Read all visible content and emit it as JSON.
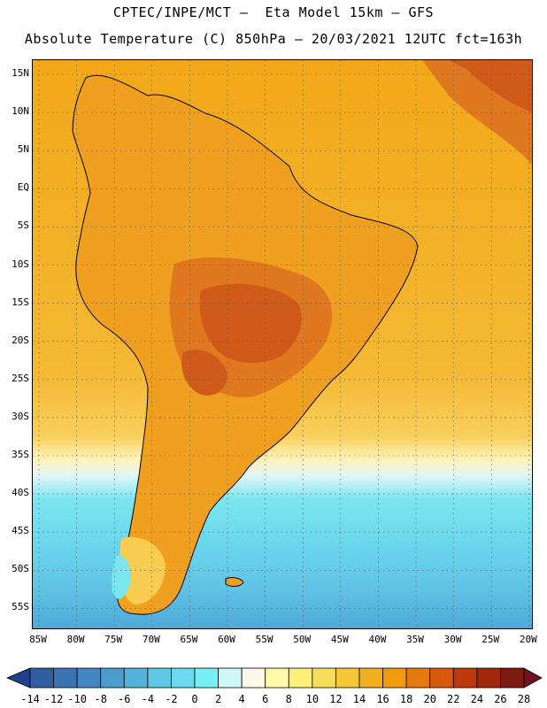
{
  "title_line1": "CPTEC/INPE/MCT —  Eta Model 15km — GFS",
  "title_line2": "Absolute Temperature (C) 850hPa — 20/03/2021 12UTC fct=163h",
  "lat_labels": [
    "15N",
    "10N",
    "5N",
    "EQ",
    "5S",
    "10S",
    "15S",
    "20S",
    "25S",
    "30S",
    "35S",
    "40S",
    "45S",
    "50S",
    "55S"
  ],
  "lon_labels": [
    "85W",
    "80W",
    "75W",
    "70W",
    "65W",
    "60W",
    "55W",
    "50W",
    "45W",
    "40W",
    "35W",
    "30W",
    "25W",
    "20W"
  ],
  "colorbar": {
    "labels": [
      "-14",
      "-12",
      "-10",
      "-8",
      "-6",
      "-4",
      "-2",
      "0",
      "2",
      "4",
      "6",
      "8",
      "10",
      "12",
      "14",
      "16",
      "18",
      "20",
      "22",
      "24",
      "26",
      "28"
    ],
    "colors": [
      "#1f3f8f",
      "#2f5ea3",
      "#3a74b5",
      "#4486c2",
      "#4d9cd0",
      "#55b2dc",
      "#5fc8e6",
      "#6ddaef",
      "#76f0f5",
      "#cff6f9",
      "#fff8e8",
      "#fff9a8",
      "#fbef7a",
      "#f7de5a",
      "#f4c83a",
      "#f2b020",
      "#f19a10",
      "#e67a10",
      "#d75a0c",
      "#bf3a0a",
      "#a0260c",
      "#7a1a10",
      "#701020"
    ]
  },
  "legend": {
    "colors": {
      "land_warm": "#f0a020",
      "land_hot": "#e07820",
      "hot_core": "#d05a1a",
      "ocean_warm": "#f4b030",
      "ocean_mid": "#f8cc50",
      "ocean_cool": "#fff3b0",
      "cold_light": "#dff6f9",
      "cold": "#7be6ef",
      "colder": "#5fc8e6",
      "coldest": "#4d9cd0"
    }
  }
}
